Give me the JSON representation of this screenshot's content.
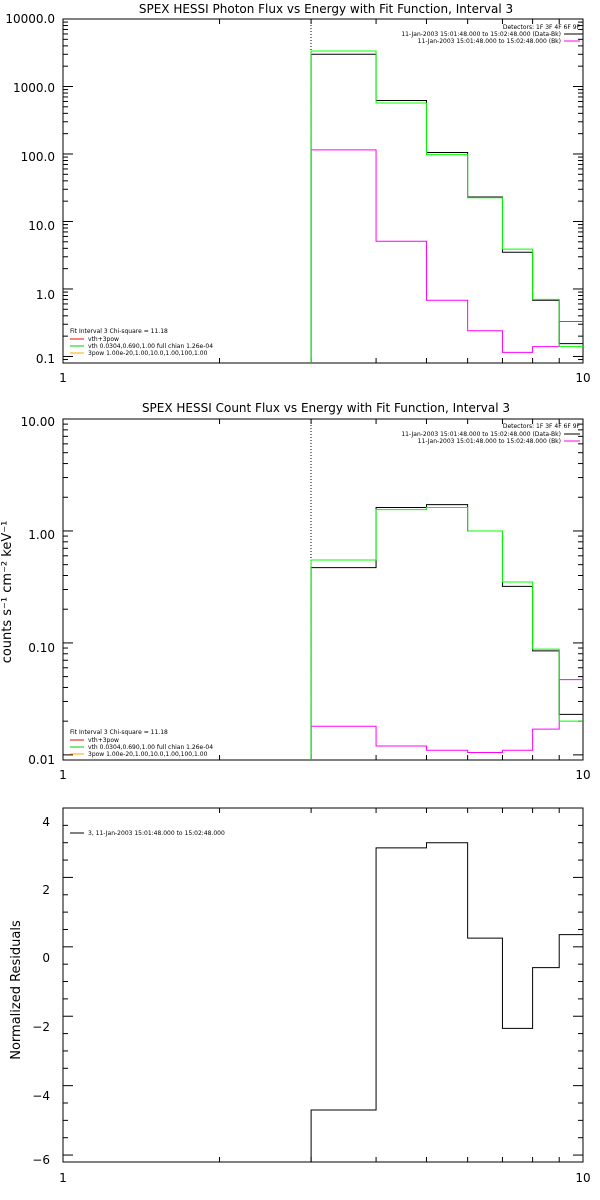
{
  "colors": {
    "background": "#ffffff",
    "axis": "#000000",
    "data": "#000000",
    "model": "#00ff00",
    "background_counts": "#ff00ff",
    "comp_vth_bpow": "#ff0000",
    "comp_vth": "#00cc00",
    "comp_bpow": "#ffaa00",
    "cursor": "#007700"
  },
  "chart_data": [
    {
      "type": "line",
      "title": "SPEX HESSI Photon Flux vs Energy with Fit Function, Interval 3",
      "xscale": "log",
      "yscale": "log",
      "xlim": [
        1,
        10
      ],
      "ylim": [
        0.08,
        10000
      ],
      "x_tick_labels": [
        "1",
        "10"
      ],
      "y_tick_labels": [
        "10000.0",
        "1000.0",
        "100.0",
        "10.0",
        "1.0",
        "0.1"
      ],
      "legend_top": {
        "detectors": "Detectors: 1F 3F 4F 6F 9F",
        "interval_lines": [
          "11-Jan-2003 15:01:48.000 to 15:02:48.000 (Data-Bk)",
          "11-Jan-2003 15:01:48.000 to 15:02:48.000 (Bk)"
        ]
      },
      "legend_fit": {
        "header": "Fit Interval 3   Chi-square = 11.18",
        "lines": [
          "vth+3pow",
          "vth 0.0304,0.690,1.00  full chian 1.26e-04",
          "3pow 1.00e-20,1.00,10.0,1.00,100,1.00"
        ]
      },
      "cursor_x": 3.0,
      "bin_edges": [
        3,
        4,
        5,
        6,
        7,
        8,
        9,
        10
      ],
      "series": [
        {
          "name": "Data-Bk",
          "values": [
            3000,
            620,
            105,
            23,
            3.5,
            0.68,
            0.155
          ]
        },
        {
          "name": "vth+3pow",
          "values": [
            3350,
            570,
            98,
            22.5,
            3.9,
            0.7,
            0.14
          ]
        },
        {
          "name": "Bk",
          "values": [
            115,
            5.1,
            0.68,
            0.24,
            0.115,
            0.14,
            0.33
          ]
        }
      ]
    },
    {
      "type": "line",
      "title": "SPEX HESSI Count Flux vs Energy with Fit Function, Interval 3",
      "ylabel": "counts s⁻¹ cm⁻² keV⁻¹",
      "xscale": "log",
      "yscale": "log",
      "xlim": [
        1,
        10
      ],
      "ylim": [
        0.009,
        10
      ],
      "x_tick_labels": [
        "1",
        "10"
      ],
      "y_tick_labels": [
        "10.00",
        "1.00",
        "0.10",
        "0.01"
      ],
      "legend_top": {
        "detectors": "Detectors: 1F 3F 4F 6F 9F",
        "interval_lines": [
          "11-Jan-2003 15:01:48.000 to 15:02:48.000 (Data-Bk)",
          "11-Jan-2003 15:01:48.000 to 15:02:48.000 (Bk)"
        ]
      },
      "legend_fit": {
        "header": "Fit Interval 3   Chi-square = 11.18",
        "lines": [
          "vth+3pow",
          "vth 0.0304,0.690,1.00  full chian 1.26e-04",
          "3pow 1.00e-20,1.00,10.0,1.00,100,1.00"
        ]
      },
      "cursor_x": 3.0,
      "bin_edges": [
        3,
        4,
        5,
        6,
        7,
        8,
        9,
        10
      ],
      "series": [
        {
          "name": "Data-Bk",
          "values": [
            0.47,
            1.62,
            1.72,
            1.0,
            0.32,
            0.085,
            0.023
          ]
        },
        {
          "name": "vth+3pow",
          "values": [
            0.55,
            1.55,
            1.62,
            1.0,
            0.35,
            0.088,
            0.02
          ]
        },
        {
          "name": "Bk",
          "values": [
            0.018,
            0.012,
            0.011,
            0.0105,
            0.011,
            0.017,
            0.047
          ]
        }
      ]
    },
    {
      "type": "line",
      "ylabel": "Normalized Residuals",
      "xscale": "log",
      "yscale": "linear",
      "xlim": [
        1,
        10
      ],
      "ylim": [
        -6.2,
        4
      ],
      "x_tick_labels": [
        "1",
        "10"
      ],
      "y_ticks": [
        4,
        2,
        0,
        -2,
        -4,
        -6
      ],
      "y_tick_labels": [
        "4",
        "2",
        "0",
        "−2",
        "−4",
        "−6"
      ],
      "legend": "3, 11-Jan-2003 15:01:48.000 to 15:02:48.000",
      "bin_edges": [
        3,
        4,
        5,
        6,
        7,
        8,
        9,
        10
      ],
      "series": [
        {
          "name": "3, 11-Jan-2003 15:01:48.000 to 15:02:48.000",
          "values": [
            -4.7,
            2.85,
            3.0,
            0.25,
            -2.35,
            -0.6,
            0.35
          ]
        }
      ]
    }
  ]
}
